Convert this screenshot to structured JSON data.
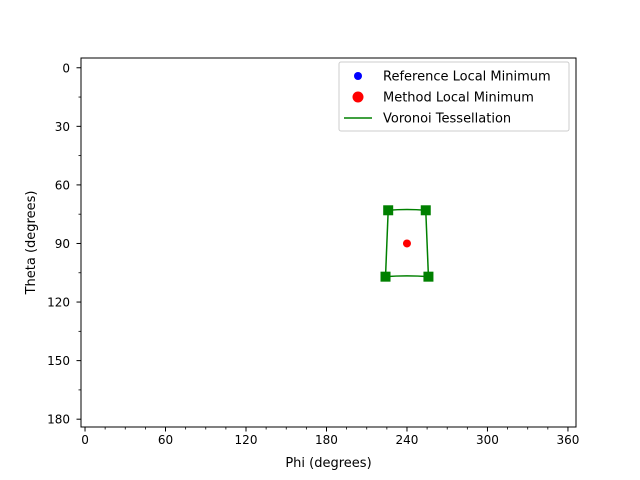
{
  "chart_data": {
    "type": "scatter",
    "xlabel": "Phi (degrees)",
    "ylabel": "Theta (degrees)",
    "xlim": [
      -3,
      366
    ],
    "ylim": [
      184,
      -5
    ],
    "y_inverted": true,
    "xticks": [
      0,
      60,
      120,
      180,
      240,
      300,
      360
    ],
    "yticks": [
      0,
      30,
      60,
      90,
      120,
      150,
      180
    ],
    "xtick_labels": [
      "0",
      "60",
      "120",
      "180",
      "240",
      "300",
      "360"
    ],
    "ytick_labels": [
      "0",
      "30",
      "60",
      "90",
      "120",
      "150",
      "180"
    ],
    "x_minor_step": 15,
    "y_minor_step": 15,
    "grid": false,
    "legend_position": "upper right",
    "legend": [
      {
        "label": "Reference Local Minimum",
        "kind": "marker-circle-small",
        "color": "#0000ff"
      },
      {
        "label": "Method Local Minimum",
        "kind": "marker-circle-large",
        "color": "#ff0000"
      },
      {
        "label": "Voronoi Tessellation",
        "kind": "line",
        "color": "#008000"
      }
    ],
    "series": [
      {
        "name": "Method Local Minimum",
        "color": "#ff0000",
        "points": [
          {
            "x": 240,
            "y": 90
          }
        ]
      },
      {
        "name": "Voronoi Tessellation",
        "color": "#008000",
        "vertices": [
          {
            "x": 226,
            "y": 73
          },
          {
            "x": 254,
            "y": 73
          },
          {
            "x": 256,
            "y": 107
          },
          {
            "x": 224,
            "y": 107
          }
        ],
        "edges": [
          {
            "from": 0,
            "to": 1,
            "bow": -1.5
          },
          {
            "from": 1,
            "to": 2,
            "bow": 0
          },
          {
            "from": 2,
            "to": 3,
            "bow": -1.5
          },
          {
            "from": 3,
            "to": 0,
            "bow": 0
          }
        ]
      }
    ]
  }
}
